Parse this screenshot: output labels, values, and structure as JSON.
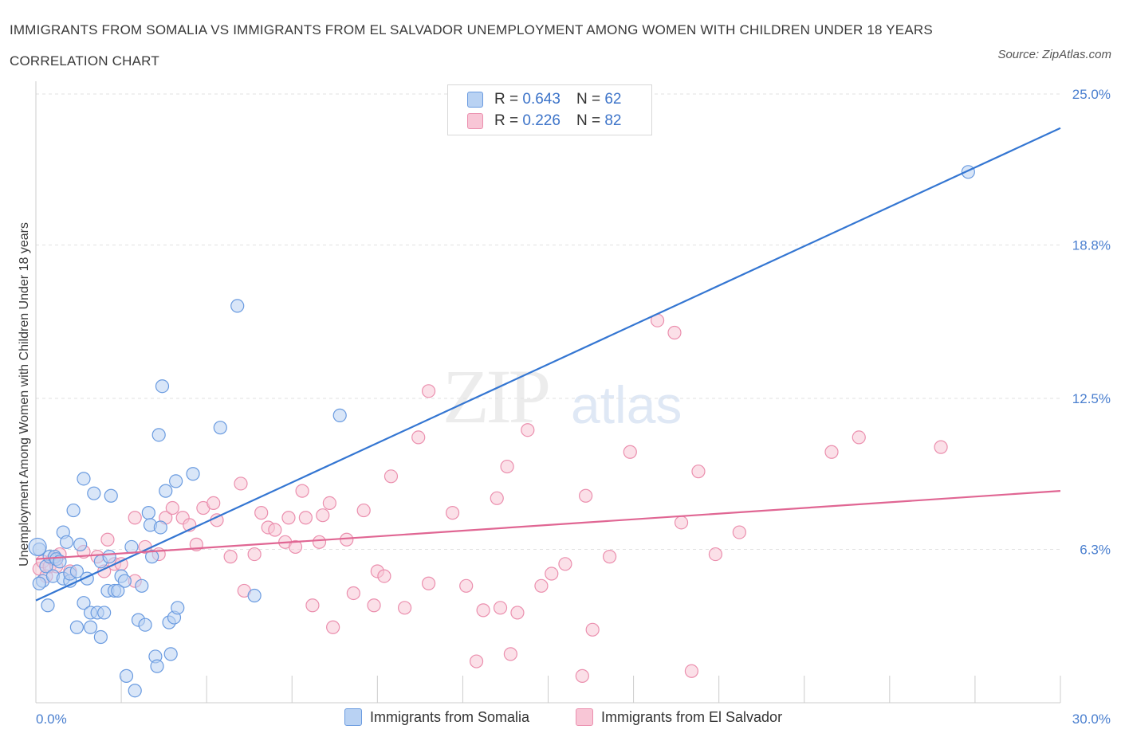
{
  "header": {
    "title": "IMMIGRANTS FROM SOMALIA VS IMMIGRANTS FROM EL SALVADOR UNEMPLOYMENT AMONG WOMEN WITH CHILDREN UNDER 18 YEARS CORRELATION CHART",
    "source": "Source: ZipAtlas.com"
  },
  "watermark": {
    "zip": "ZIP",
    "atlas": "atlas"
  },
  "legend": {
    "r_label": "R =",
    "n_label": "N =",
    "somalia": {
      "r": "0.643",
      "n": "62"
    },
    "elsalvador": {
      "r": "0.226",
      "n": "82"
    }
  },
  "colors": {
    "somalia_fill": "#b9d2f3",
    "somalia_stroke": "#6a9be0",
    "somalia_line": "#3476d2",
    "elsalvador_fill": "#f8c6d6",
    "elsalvador_stroke": "#eb8fae",
    "elsalvador_line": "#e06693",
    "tick": "#4a7fcf",
    "grid": "#e2e2e2"
  },
  "chart_data": {
    "type": "scatter",
    "xlabel": "",
    "ylabel": "Unemployment Among Women with Children Under 18 years",
    "xlim": [
      0,
      30
    ],
    "ylim": [
      0,
      25
    ],
    "x_tick_labels": [
      "0.0%",
      "30.0%"
    ],
    "y_ticks": [
      6.3,
      12.5,
      18.8,
      25.0
    ],
    "y_tick_labels": [
      "6.3%",
      "12.5%",
      "18.8%",
      "25.0%"
    ],
    "grid": true,
    "legend_position": "top-center",
    "series": [
      {
        "name": "Immigrants from Somalia",
        "trend": {
          "x": [
            0,
            30
          ],
          "y": [
            4.2,
            23.6
          ]
        },
        "points": [
          [
            0.1,
            6.3
          ],
          [
            0.2,
            5.0
          ],
          [
            0.3,
            5.6
          ],
          [
            0.35,
            4.0
          ],
          [
            0.4,
            6.0
          ],
          [
            0.5,
            5.2
          ],
          [
            0.55,
            6.0
          ],
          [
            0.6,
            5.9
          ],
          [
            0.7,
            5.8
          ],
          [
            0.8,
            5.1
          ],
          [
            0.8,
            7.0
          ],
          [
            0.9,
            6.6
          ],
          [
            1.0,
            5.0
          ],
          [
            1.0,
            5.3
          ],
          [
            1.1,
            7.9
          ],
          [
            1.2,
            5.4
          ],
          [
            1.2,
            3.1
          ],
          [
            1.3,
            6.5
          ],
          [
            1.4,
            4.1
          ],
          [
            1.4,
            9.2
          ],
          [
            1.5,
            5.1
          ],
          [
            1.6,
            3.1
          ],
          [
            1.6,
            3.7
          ],
          [
            1.7,
            8.6
          ],
          [
            1.8,
            3.7
          ],
          [
            1.9,
            2.7
          ],
          [
            1.9,
            5.8
          ],
          [
            2.0,
            3.7
          ],
          [
            2.1,
            4.6
          ],
          [
            2.15,
            6.0
          ],
          [
            2.2,
            8.5
          ],
          [
            2.3,
            4.6
          ],
          [
            2.4,
            4.6
          ],
          [
            2.5,
            5.2
          ],
          [
            2.6,
            5.0
          ],
          [
            2.65,
            1.1
          ],
          [
            2.8,
            6.4
          ],
          [
            2.9,
            0.5
          ],
          [
            3.0,
            3.4
          ],
          [
            3.1,
            4.8
          ],
          [
            3.2,
            3.2
          ],
          [
            3.3,
            7.8
          ],
          [
            3.35,
            7.3
          ],
          [
            3.4,
            6.0
          ],
          [
            3.5,
            1.9
          ],
          [
            3.55,
            1.5
          ],
          [
            3.6,
            11.0
          ],
          [
            3.65,
            7.2
          ],
          [
            3.7,
            13.0
          ],
          [
            3.8,
            8.7
          ],
          [
            3.9,
            3.3
          ],
          [
            3.95,
            2.0
          ],
          [
            4.05,
            3.5
          ],
          [
            4.1,
            9.1
          ],
          [
            4.15,
            3.9
          ],
          [
            4.6,
            9.4
          ],
          [
            5.4,
            11.3
          ],
          [
            5.9,
            16.3
          ],
          [
            6.4,
            4.4
          ],
          [
            8.9,
            11.8
          ],
          [
            27.3,
            21.8
          ],
          [
            0.1,
            4.9
          ]
        ]
      },
      {
        "name": "Immigrants from El Salvador",
        "trend": {
          "x": [
            0,
            30
          ],
          "y": [
            5.9,
            8.7
          ]
        },
        "points": [
          [
            0.1,
            5.5
          ],
          [
            0.2,
            5.8
          ],
          [
            0.3,
            5.2
          ],
          [
            0.4,
            5.6
          ],
          [
            0.5,
            5.9
          ],
          [
            0.6,
            5.6
          ],
          [
            0.7,
            6.1
          ],
          [
            1.0,
            5.4
          ],
          [
            1.4,
            6.2
          ],
          [
            1.8,
            6.0
          ],
          [
            2.0,
            5.4
          ],
          [
            2.1,
            6.7
          ],
          [
            2.3,
            5.7
          ],
          [
            2.5,
            5.7
          ],
          [
            2.9,
            5.0
          ],
          [
            2.9,
            7.6
          ],
          [
            3.2,
            6.4
          ],
          [
            3.6,
            6.1
          ],
          [
            3.8,
            7.6
          ],
          [
            4.0,
            8.0
          ],
          [
            4.3,
            7.6
          ],
          [
            4.5,
            7.3
          ],
          [
            4.7,
            6.5
          ],
          [
            4.9,
            8.0
          ],
          [
            5.2,
            8.2
          ],
          [
            5.3,
            7.5
          ],
          [
            5.7,
            6.0
          ],
          [
            6.0,
            9.0
          ],
          [
            6.1,
            4.6
          ],
          [
            6.4,
            6.1
          ],
          [
            6.6,
            7.8
          ],
          [
            6.8,
            7.2
          ],
          [
            7.0,
            7.1
          ],
          [
            7.3,
            6.6
          ],
          [
            7.4,
            7.6
          ],
          [
            7.6,
            6.4
          ],
          [
            7.8,
            8.7
          ],
          [
            7.9,
            7.6
          ],
          [
            8.1,
            4.0
          ],
          [
            8.3,
            6.6
          ],
          [
            8.4,
            7.7
          ],
          [
            8.6,
            8.2
          ],
          [
            8.7,
            3.1
          ],
          [
            9.1,
            6.7
          ],
          [
            9.3,
            4.5
          ],
          [
            9.6,
            7.9
          ],
          [
            9.9,
            4.0
          ],
          [
            10.0,
            5.4
          ],
          [
            10.2,
            5.2
          ],
          [
            10.4,
            9.3
          ],
          [
            10.8,
            3.9
          ],
          [
            11.2,
            10.9
          ],
          [
            11.5,
            4.9
          ],
          [
            11.5,
            12.8
          ],
          [
            12.2,
            7.8
          ],
          [
            12.6,
            4.8
          ],
          [
            12.9,
            1.7
          ],
          [
            13.1,
            3.8
          ],
          [
            13.5,
            8.4
          ],
          [
            13.6,
            3.9
          ],
          [
            13.8,
            9.7
          ],
          [
            13.9,
            2.0
          ],
          [
            14.1,
            3.7
          ],
          [
            14.4,
            11.2
          ],
          [
            14.8,
            4.8
          ],
          [
            15.1,
            5.3
          ],
          [
            15.5,
            5.7
          ],
          [
            16.0,
            1.1
          ],
          [
            16.1,
            8.5
          ],
          [
            16.3,
            3.0
          ],
          [
            16.8,
            6.0
          ],
          [
            17.4,
            10.3
          ],
          [
            18.2,
            15.7
          ],
          [
            18.7,
            15.2
          ],
          [
            18.9,
            7.4
          ],
          [
            19.2,
            1.3
          ],
          [
            19.4,
            9.5
          ],
          [
            19.9,
            6.1
          ],
          [
            20.6,
            7.0
          ],
          [
            23.3,
            10.3
          ],
          [
            24.1,
            10.9
          ],
          [
            26.5,
            10.5
          ]
        ]
      }
    ]
  },
  "bottom_legend": {
    "somalia": "Immigrants from Somalia",
    "elsalvador": "Immigrants from El Salvador"
  }
}
